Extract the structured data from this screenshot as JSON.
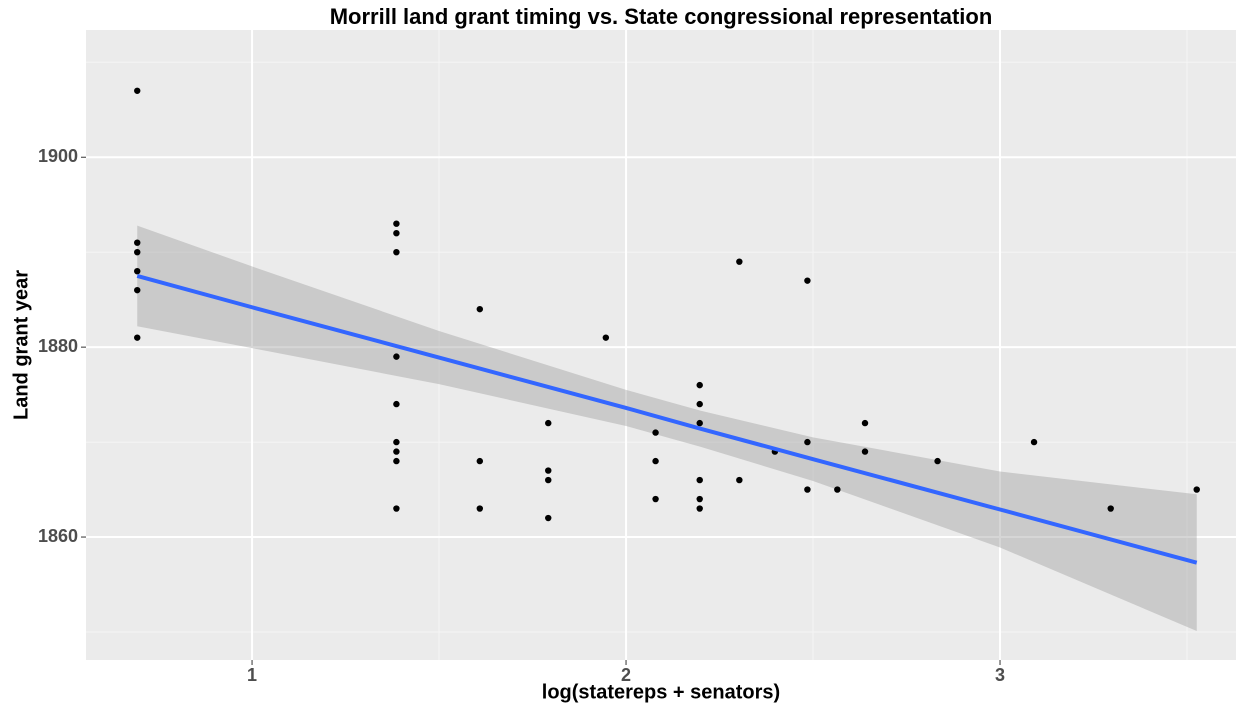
{
  "chart_data": {
    "type": "scatter",
    "title": "Morrill land grant timing vs. State congressional representation",
    "x_label": "log(statereps + senators)",
    "y_label": "Land grant year",
    "xlim": [
      0.556,
      3.631
    ],
    "ylim": [
      1847.05,
      1913.4
    ],
    "xticks": [
      1,
      2,
      3
    ],
    "yticks": [
      1860,
      1880,
      1900
    ],
    "x_minor_breaks": [
      1.5,
      2.5,
      3.5
    ],
    "y_minor_breaks": [
      1850,
      1870,
      1890,
      1910
    ],
    "grid": true,
    "panel_color": "#ebebeb",
    "series": [
      {
        "color": "#000000",
        "x": [
          0.693,
          0.693,
          0.693,
          0.693,
          0.693,
          0.693,
          1.386,
          1.386,
          1.386,
          1.386,
          1.386,
          1.386,
          1.386,
          1.386,
          1.386,
          1.609,
          1.609,
          1.609,
          1.792,
          1.792,
          1.792,
          1.792,
          1.946,
          2.079,
          2.079,
          2.079,
          2.197,
          2.197,
          2.197,
          2.197,
          2.197,
          2.197,
          2.303,
          2.303,
          2.398,
          2.485,
          2.485,
          2.485,
          2.565,
          2.639,
          2.639,
          2.833,
          3.091,
          3.296,
          3.526
        ],
        "values": [
          1907,
          1891,
          1890,
          1888,
          1886,
          1881,
          1893,
          1892,
          1890,
          1879,
          1874,
          1870,
          1869,
          1868,
          1863,
          1884,
          1868,
          1863,
          1872,
          1867,
          1866,
          1862,
          1881,
          1871,
          1868,
          1864,
          1876,
          1874,
          1872,
          1866,
          1864,
          1863,
          1889,
          1866,
          1869,
          1887,
          1870,
          1865,
          1865,
          1872,
          1869,
          1868,
          1870,
          1863,
          1865
        ]
      }
    ],
    "smooth": {
      "color": "#3366ff",
      "band_color": "#999999",
      "x": [
        0.693,
        1,
        1.5,
        2,
        2.2,
        2.5,
        3,
        3.526
      ],
      "values": [
        1887.5,
        1884.2,
        1878.9,
        1873.6,
        1871.4,
        1868.2,
        1862.9,
        1857.3
      ],
      "lower": [
        1882.2,
        1879.9,
        1876.1,
        1871.7,
        1869.5,
        1865.9,
        1858.9,
        1850.1
      ],
      "upper": [
        1892.8,
        1888.5,
        1881.7,
        1875.5,
        1873.3,
        1870.5,
        1866.9,
        1864.5
      ]
    }
  }
}
